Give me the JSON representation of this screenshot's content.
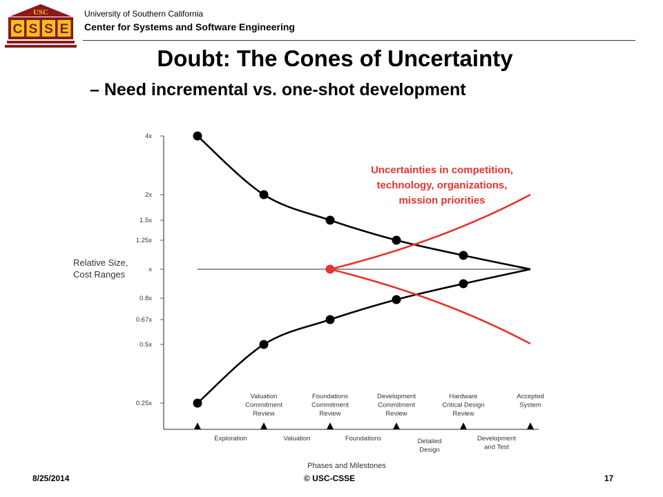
{
  "header": {
    "university": "University of Southern California",
    "center": "Center for Systems and Software Engineering",
    "logo_top_text": "USC",
    "logo_letters": [
      "C",
      "S",
      "S",
      "E"
    ]
  },
  "slide": {
    "title": "Doubt: The Cones of Uncertainty",
    "subtitle": "– Need incremental vs. one-shot development"
  },
  "diagram": {
    "y_axis_label_lines": [
      "Relative Size,",
      "Cost Ranges"
    ],
    "x_axis_label": "Phases and Milestones",
    "y_ticks": [
      "4x",
      "2x",
      "1.5x",
      "1.25x",
      "x",
      "0.8x",
      "0.67x",
      "0.5x",
      "0.25x"
    ],
    "milestones": [
      [
        "Valuation",
        "Commitment",
        "Review"
      ],
      [
        "Foundations",
        "Commitment",
        "Review"
      ],
      [
        "Development",
        "Commitment",
        "Review"
      ],
      [
        "Hardware",
        "Critical Design",
        "Review"
      ],
      [
        "Accepted",
        "System"
      ]
    ],
    "phases": [
      [
        "Exploration"
      ],
      [
        "Valuation"
      ],
      [
        "Foundations"
      ],
      [
        "Detailed",
        "Design"
      ],
      [
        "Development",
        "and Test"
      ]
    ],
    "annotation_lines": [
      "Uncertainties in competition,",
      "technology, organizations,",
      "mission priorities"
    ],
    "colors": {
      "cone": "#000000",
      "annotation": "#e8332e",
      "axis": "#555555"
    }
  },
  "footer": {
    "date": "8/25/2014",
    "copyright": "© USC-CSSE",
    "page": "17"
  }
}
